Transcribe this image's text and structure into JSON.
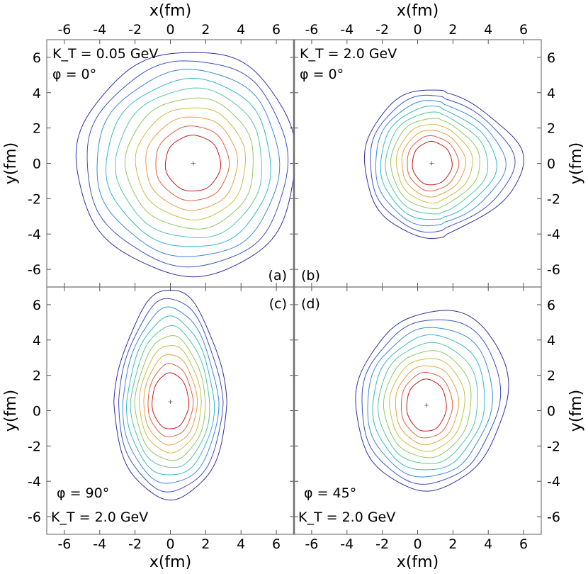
{
  "chart_data": [
    {
      "panel": "(a)",
      "type": "contour",
      "annotations": [
        "K_T = 0.05 GeV",
        "φ = 0°"
      ],
      "xlabel": "x(fm)",
      "ylabel": "y(fm)",
      "xlim": [
        -7,
        7
      ],
      "ylim": [
        -7,
        7
      ],
      "x_ticks": [
        -6,
        -4,
        -2,
        0,
        2,
        4,
        6
      ],
      "y_ticks": [
        -6,
        -4,
        -2,
        0,
        2,
        4,
        6
      ],
      "levels": 10,
      "center": [
        1.3,
        0.0
      ],
      "level_colors": [
        "#3030a0",
        "#3c50c8",
        "#3c88d8",
        "#30b8c8",
        "#50c8a0",
        "#90c860",
        "#c8c040",
        "#e8a040",
        "#e06040",
        "#c81818"
      ]
    },
    {
      "panel": "(b)",
      "type": "contour",
      "annotations": [
        "K_T = 2.0 GeV",
        "φ = 0°"
      ],
      "xlabel": "x(fm)",
      "ylabel": "y(fm)",
      "xlim": [
        -7,
        7
      ],
      "ylim": [
        -7,
        7
      ],
      "x_ticks": [
        -6,
        -4,
        -2,
        0,
        2,
        4,
        6
      ],
      "y_ticks": [
        -6,
        -4,
        -2,
        0,
        2,
        4,
        6
      ],
      "levels": 10,
      "center": [
        0.8,
        0.0
      ]
    },
    {
      "panel": "(c)",
      "type": "contour",
      "annotations": [
        "φ = 90°",
        "K_T = 2.0 GeV"
      ],
      "xlabel": "x(fm)",
      "ylabel": "y(fm)",
      "xlim": [
        -7,
        7
      ],
      "ylim": [
        -7,
        7
      ],
      "x_ticks": [
        -6,
        -4,
        -2,
        0,
        2,
        4,
        6
      ],
      "y_ticks": [
        -6,
        -4,
        -2,
        0,
        2,
        4,
        6
      ],
      "levels": 10,
      "center": [
        0.0,
        0.5
      ]
    },
    {
      "panel": "(d)",
      "type": "contour",
      "annotations": [
        "φ = 45°",
        "K_T = 2.0 GeV"
      ],
      "xlabel": "x(fm)",
      "ylabel": "y(fm)",
      "xlim": [
        -7,
        7
      ],
      "ylim": [
        -7,
        7
      ],
      "x_ticks": [
        -6,
        -4,
        -2,
        0,
        2,
        4,
        6
      ],
      "y_ticks": [
        -6,
        -4,
        -2,
        0,
        2,
        4,
        6
      ],
      "levels": 10,
      "center": [
        0.5,
        0.3
      ]
    }
  ]
}
